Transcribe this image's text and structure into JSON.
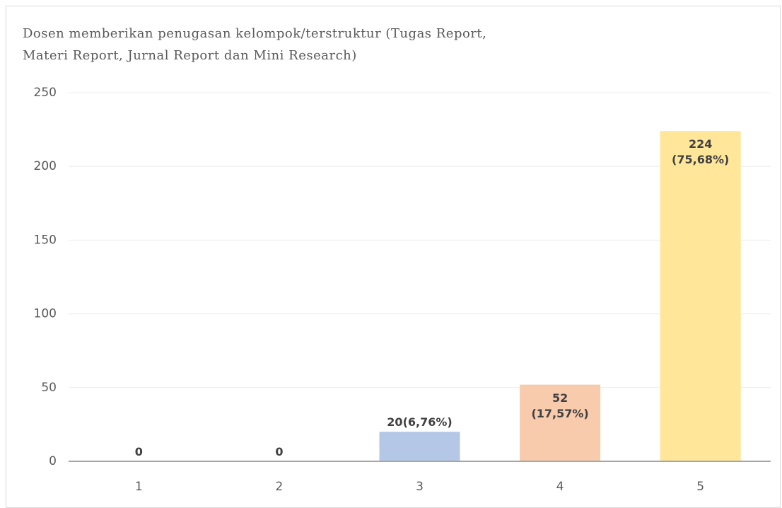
{
  "chart_data": {
    "type": "bar",
    "title": "Dosen memberikan penugasan kelompok/terstruktur (Tugas Report,\nMateri Report, Jurnal Report dan Mini Research)",
    "categories": [
      "1",
      "2",
      "3",
      "4",
      "5"
    ],
    "values": [
      0,
      0,
      20,
      52,
      224
    ],
    "value_labels": [
      "0",
      "0",
      "20(6,76%)",
      "52\n(17,57%)",
      "224\n(75,68%)"
    ],
    "colors": [
      "#b4c7e7",
      "#b4c7e7",
      "#b4c7e7",
      "#f8cbad",
      "#ffe699"
    ],
    "ylim": [
      0,
      250
    ],
    "yticks": [
      0,
      50,
      100,
      150,
      200,
      250
    ],
    "grid": true
  }
}
